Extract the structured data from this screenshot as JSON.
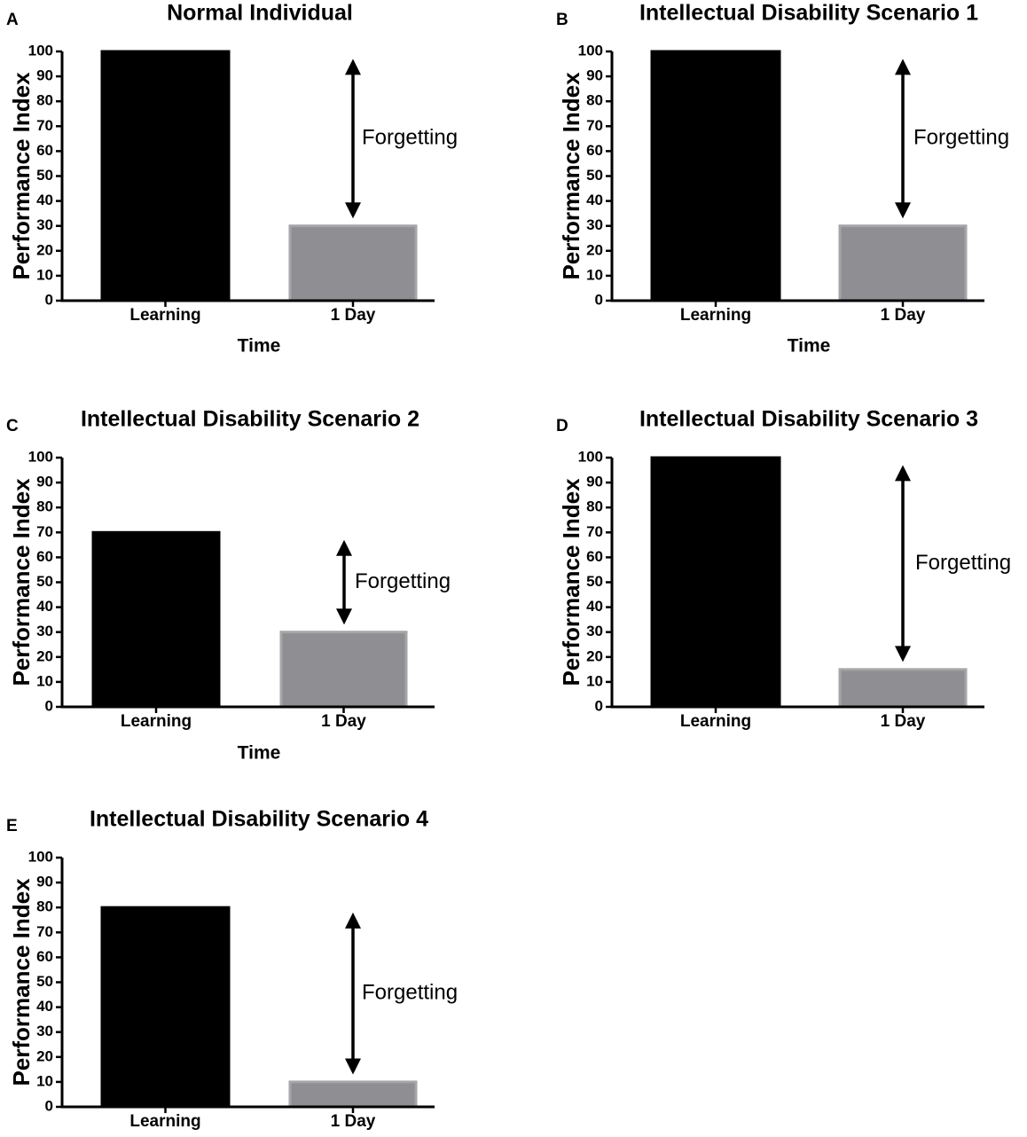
{
  "colors": {
    "learning_bar": "#000000",
    "day_bar": "#8e8e93",
    "day_bar_edge": "#a6a6a8",
    "axis": "#000000"
  },
  "chart_data": [
    {
      "panel": "A",
      "type": "bar",
      "title": "Normal Individual",
      "ylabel": "Performance Index",
      "xlabel": "Time",
      "categories": [
        "Learning",
        "1 Day"
      ],
      "values": [
        100,
        30
      ],
      "ylim": [
        0,
        100
      ],
      "yticks": [
        0,
        10,
        20,
        30,
        40,
        50,
        60,
        70,
        80,
        90,
        100
      ],
      "annotation": {
        "text": "Forgetting",
        "arrow_from": 97,
        "arrow_to": 33
      }
    },
    {
      "panel": "B",
      "type": "bar",
      "title": "Intellectual Disability Scenario 1",
      "ylabel": "Performance Index",
      "xlabel": "Time",
      "categories": [
        "Learning",
        "1 Day"
      ],
      "values": [
        100,
        30
      ],
      "ylim": [
        0,
        100
      ],
      "yticks": [
        0,
        10,
        20,
        30,
        40,
        50,
        60,
        70,
        80,
        90,
        100
      ],
      "annotation": {
        "text": "Forgetting",
        "arrow_from": 97,
        "arrow_to": 33
      }
    },
    {
      "panel": "C",
      "type": "bar",
      "title": "Intellectual Disability Scenario 2",
      "ylabel": "Performance Index",
      "xlabel": "Time",
      "categories": [
        "Learning",
        "1 Day"
      ],
      "values": [
        70,
        30
      ],
      "ylim": [
        0,
        100
      ],
      "yticks": [
        0,
        10,
        20,
        30,
        40,
        50,
        60,
        70,
        80,
        90,
        100
      ],
      "annotation": {
        "text": "Forgetting",
        "arrow_from": 67,
        "arrow_to": 33
      }
    },
    {
      "panel": "D",
      "type": "bar",
      "title": "Intellectual Disability Scenario 3",
      "ylabel": "Performance Index",
      "xlabel": "",
      "categories": [
        "Learning",
        "1 Day"
      ],
      "values": [
        100,
        15
      ],
      "ylim": [
        0,
        100
      ],
      "yticks": [
        0,
        10,
        20,
        30,
        40,
        50,
        60,
        70,
        80,
        90,
        100
      ],
      "annotation": {
        "text": "Forgetting",
        "arrow_from": 97,
        "arrow_to": 18
      }
    },
    {
      "panel": "E",
      "type": "bar",
      "title": "Intellectual Disability Scenario 4",
      "ylabel": "Performance Index",
      "xlabel": "",
      "categories": [
        "Learning",
        "1 Day"
      ],
      "values": [
        80,
        10
      ],
      "ylim": [
        0,
        100
      ],
      "yticks": [
        0,
        10,
        20,
        30,
        40,
        50,
        60,
        70,
        80,
        90,
        100
      ],
      "annotation": {
        "text": "Forgetting",
        "arrow_from": 78,
        "arrow_to": 13
      }
    }
  ]
}
